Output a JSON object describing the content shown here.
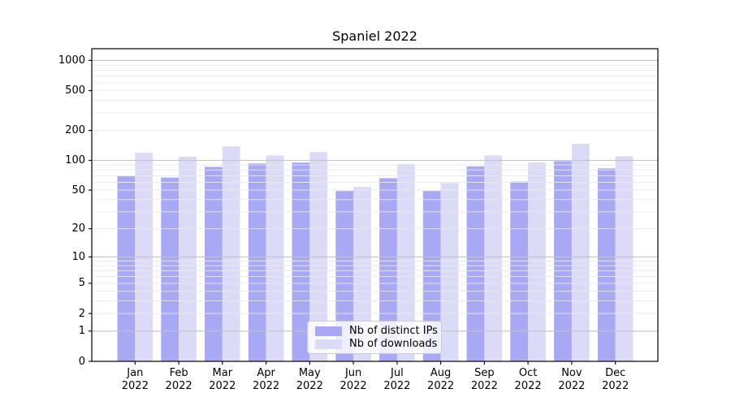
{
  "figure": {
    "title": "Spaniel 2022"
  },
  "chart_data": {
    "type": "bar",
    "title": "Spaniel 2022",
    "categories": [
      "Jan",
      "Feb",
      "Mar",
      "Apr",
      "May",
      "Jun",
      "Jul",
      "Aug",
      "Sep",
      "Oct",
      "Nov",
      "Dec"
    ],
    "year": "2022",
    "series": [
      {
        "name": "Nb of distinct IPs",
        "color": "#a8a8f4",
        "values": [
          69,
          67,
          86,
          93,
          95,
          49,
          66,
          49,
          87,
          61,
          98,
          83
        ]
      },
      {
        "name": "Nb of downloads",
        "color": "#dbdbf8",
        "values": [
          119,
          109,
          138,
          112,
          121,
          54,
          92,
          59,
          112,
          95,
          147,
          110
        ]
      }
    ],
    "xlabel": "",
    "ylabel": "",
    "yscale": "log1p",
    "yticks": [
      1000,
      500,
      200,
      100,
      50,
      20,
      10,
      5,
      2,
      1,
      0
    ],
    "ylim": [
      0,
      1300
    ],
    "grid": "both-horizontal",
    "legend_position": "inside lower-center"
  },
  "colors": {
    "major_grid": "#c3c3c3",
    "minor_grid": "#eaeaea",
    "spine": "#000000",
    "text": "#000000",
    "background": "#ffffff"
  }
}
